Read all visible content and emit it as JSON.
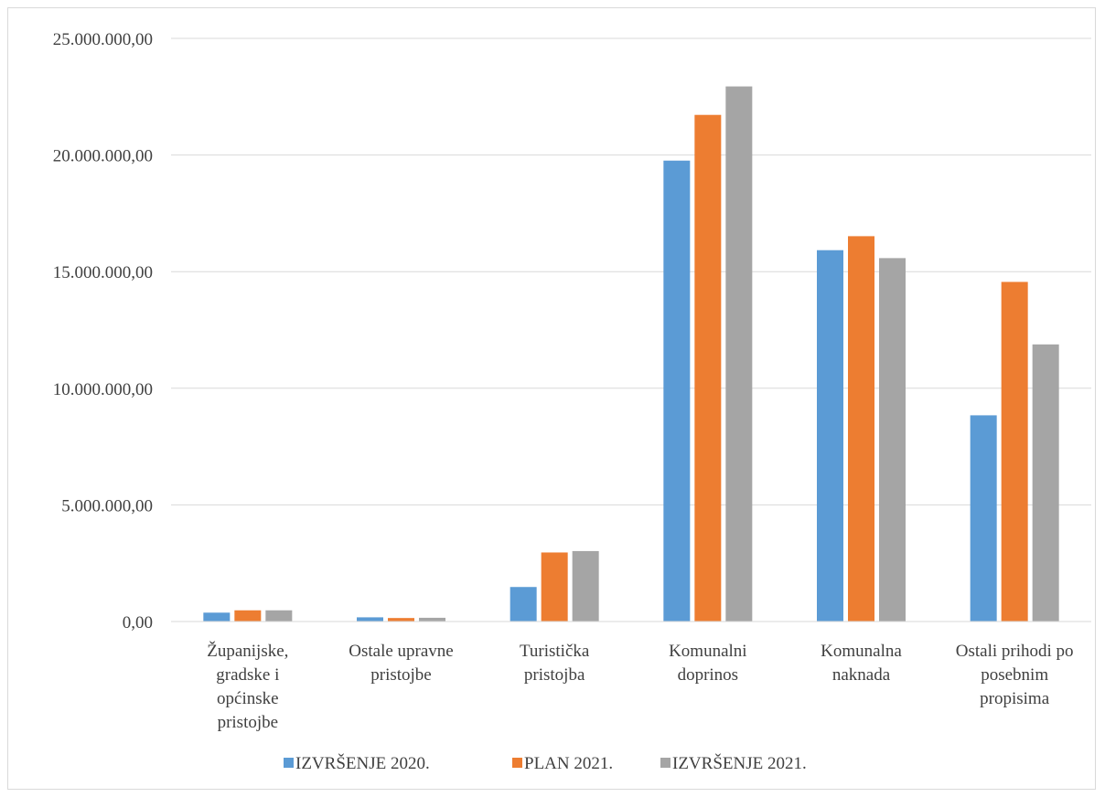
{
  "chart_data": {
    "type": "bar",
    "title": "",
    "xlabel": "",
    "ylabel": "",
    "ylim": [
      0,
      25000000
    ],
    "yticks": [
      {
        "value": 0,
        "label": "0,00"
      },
      {
        "value": 5000000,
        "label": "5.000.000,00"
      },
      {
        "value": 10000000,
        "label": "10.000.000,00"
      },
      {
        "value": 15000000,
        "label": "15.000.000,00"
      },
      {
        "value": 20000000,
        "label": "20.000.000,00"
      },
      {
        "value": 25000000,
        "label": "25.000.000,00"
      }
    ],
    "grid": true,
    "legend_position": "bottom",
    "categories": [
      [
        "Županijske,",
        "gradske i",
        "općinske",
        "pristojbe"
      ],
      [
        "Ostale upravne",
        "pristojbe"
      ],
      [
        "Turistička",
        "pristojba"
      ],
      [
        "Komunalni",
        "doprinos"
      ],
      [
        "Komunalna",
        "naknada"
      ],
      [
        "Ostali prihodi po",
        "posebnim",
        "propisima"
      ]
    ],
    "series": [
      {
        "name": "IZVRŠENJE 2020.",
        "color": "#5b9bd5",
        "values": [
          380000,
          180000,
          1480000,
          19760000,
          15920000,
          8840000
        ]
      },
      {
        "name": "PLAN 2021.",
        "color": "#ed7d31",
        "values": [
          480000,
          150000,
          2960000,
          21720000,
          16520000,
          14560000
        ]
      },
      {
        "name": "IZVRŠENJE 2021.",
        "color": "#a5a5a5",
        "values": [
          480000,
          160000,
          3020000,
          22940000,
          15580000,
          11880000
        ]
      }
    ]
  }
}
